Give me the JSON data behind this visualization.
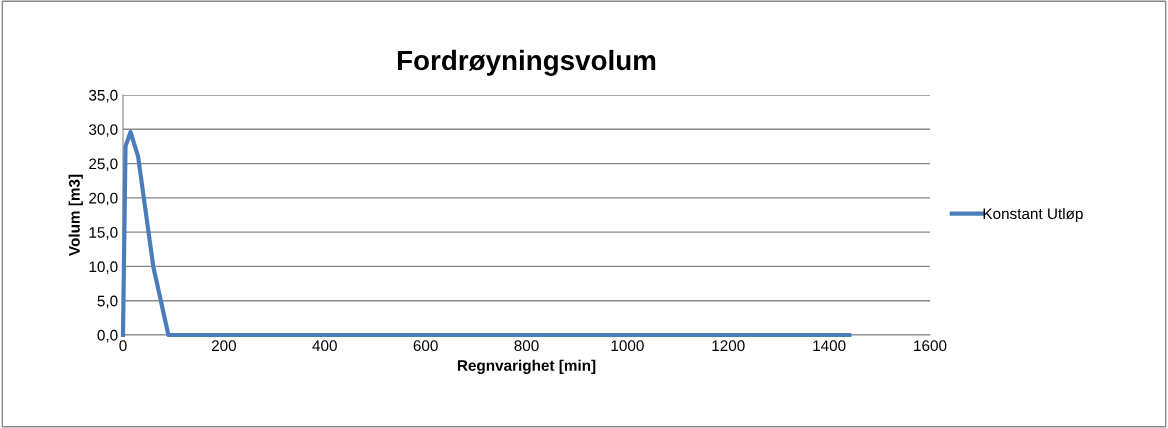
{
  "chart_data": {
    "type": "line",
    "title": "Fordrøyningsvolum",
    "xlabel": "Regnvarighet [min]",
    "ylabel": "Volum [m3]",
    "series": [
      {
        "name": "Konstant Utløp",
        "color": "#4a7ebb",
        "x": [
          0,
          5,
          15,
          30,
          60,
          90,
          120,
          180,
          360,
          720,
          1440
        ],
        "values": [
          0,
          27.5,
          29.6,
          26.0,
          10.0,
          0,
          0,
          0,
          0,
          0,
          0
        ]
      }
    ],
    "xlim": [
      0,
      1600
    ],
    "xticks": [
      0,
      200,
      400,
      600,
      800,
      1000,
      1200,
      1400,
      1600
    ],
    "ylim": [
      0,
      35
    ],
    "yticks": [
      {
        "value": 0,
        "label": "0,0"
      },
      {
        "value": 5,
        "label": "5,0"
      },
      {
        "value": 10,
        "label": "10,0"
      },
      {
        "value": 15,
        "label": "15,0"
      },
      {
        "value": 20,
        "label": "20,0"
      },
      {
        "value": 25,
        "label": "25,0"
      },
      {
        "value": 30,
        "label": "30,0"
      },
      {
        "value": 35,
        "label": "35,0"
      }
    ],
    "grid": "y",
    "legend": "right",
    "marker": "none",
    "line_style": "solid"
  }
}
